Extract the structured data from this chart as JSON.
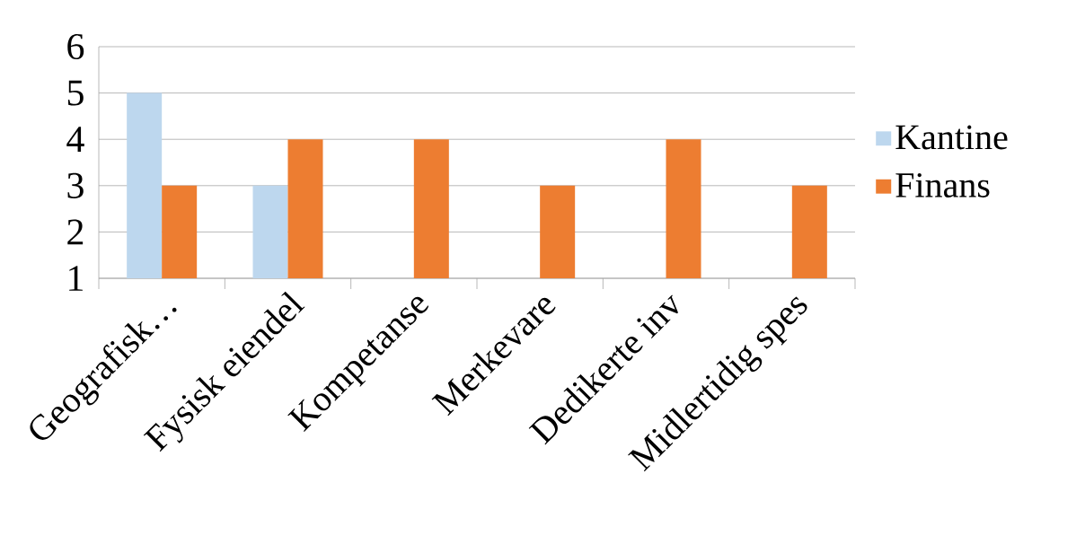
{
  "chart_data": {
    "type": "bar",
    "categories": [
      "Geografisk…",
      "Fysisk eiendel",
      "Kompetanse",
      "Merkevare",
      "Dedikerte inv",
      "Midlertidig spes"
    ],
    "series": [
      {
        "name": "Kantine",
        "color": "#bdd7ee",
        "values": [
          5,
          3,
          null,
          null,
          null,
          null
        ]
      },
      {
        "name": "Finans",
        "color": "#ed7d31",
        "values": [
          3,
          4,
          4,
          3,
          4,
          3
        ]
      }
    ],
    "ylim": [
      1,
      6
    ],
    "yticks": [
      1,
      2,
      3,
      4,
      5,
      6
    ],
    "grid": "y",
    "legend": "right"
  }
}
